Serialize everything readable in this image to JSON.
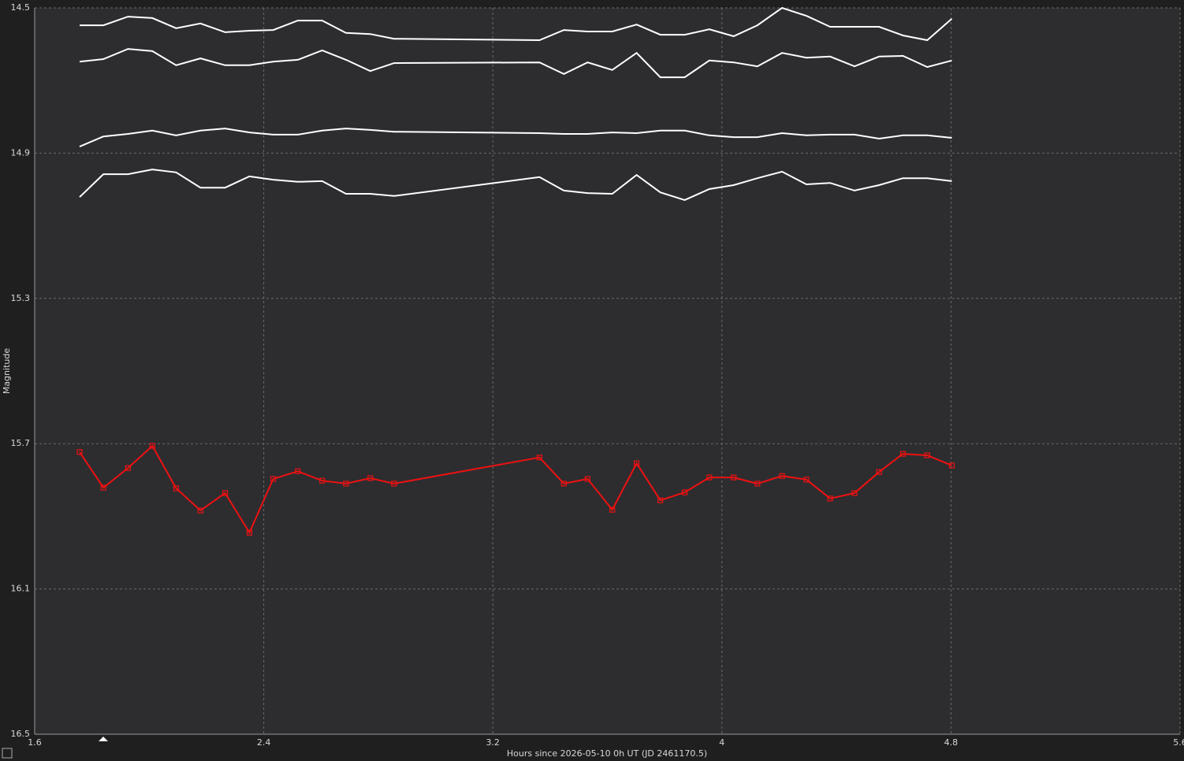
{
  "chart_data": {
    "type": "line",
    "x_label": "Hours since 2026-05-10 0h UT (JD 2461170.5)",
    "y_label": "Magnitude",
    "x": [
      1.757,
      1.84,
      1.926,
      2.011,
      2.094,
      2.179,
      2.265,
      2.35,
      2.433,
      2.519,
      2.604,
      2.687,
      2.772,
      2.855,
      3.363,
      3.448,
      3.531,
      3.617,
      3.702,
      3.785,
      3.87,
      3.956,
      4.041,
      4.124,
      4.21,
      4.295,
      4.378,
      4.463,
      4.549,
      4.632,
      4.717,
      4.803
    ],
    "series": [
      {
        "color": "#ffffff",
        "markers": false,
        "values": [
          14.548,
          14.548,
          14.524,
          14.528,
          14.556,
          14.543,
          14.567,
          14.563,
          14.561,
          14.535,
          14.535,
          14.569,
          14.572,
          14.585,
          14.589,
          14.561,
          14.565,
          14.565,
          14.546,
          14.574,
          14.574,
          14.559,
          14.578,
          14.548,
          14.5,
          14.522,
          14.552,
          14.552,
          14.552,
          14.576,
          14.589,
          14.53
        ]
      },
      {
        "color": "#ffffff",
        "markers": false,
        "values": [
          14.648,
          14.641,
          14.613,
          14.619,
          14.658,
          14.639,
          14.658,
          14.658,
          14.648,
          14.643,
          14.617,
          14.643,
          14.674,
          14.652,
          14.65,
          14.682,
          14.65,
          14.671,
          14.624,
          14.691,
          14.691,
          14.645,
          14.65,
          14.661,
          14.624,
          14.637,
          14.634,
          14.661,
          14.634,
          14.632,
          14.663,
          14.645
        ]
      },
      {
        "color": "#ffffff",
        "markers": false,
        "values": [
          14.882,
          14.854,
          14.847,
          14.838,
          14.851,
          14.838,
          14.832,
          14.843,
          14.849,
          14.849,
          14.838,
          14.832,
          14.836,
          14.841,
          14.845,
          14.847,
          14.847,
          14.843,
          14.845,
          14.838,
          14.838,
          14.851,
          14.856,
          14.856,
          14.845,
          14.851,
          14.849,
          14.849,
          14.86,
          14.851,
          14.851,
          14.858
        ]
      },
      {
        "color": "#ffffff",
        "markers": false,
        "values": [
          15.021,
          14.958,
          14.958,
          14.945,
          14.953,
          14.995,
          14.995,
          14.964,
          14.973,
          14.979,
          14.977,
          15.012,
          15.012,
          15.018,
          14.966,
          15.003,
          15.01,
          15.012,
          14.96,
          15.008,
          15.029,
          14.999,
          14.988,
          14.969,
          14.951,
          14.986,
          14.982,
          15.003,
          14.988,
          14.969,
          14.969,
          14.977
        ]
      },
      {
        "color": "#ee1111",
        "markers": true,
        "values": [
          15.723,
          15.821,
          15.767,
          15.706,
          15.823,
          15.884,
          15.836,
          15.945,
          15.797,
          15.776,
          15.802,
          15.81,
          15.795,
          15.81,
          15.738,
          15.81,
          15.797,
          15.882,
          15.754,
          15.856,
          15.834,
          15.793,
          15.793,
          15.81,
          15.789,
          15.799,
          15.851,
          15.836,
          15.778,
          15.728,
          15.732,
          15.76
        ]
      }
    ],
    "xlim": [
      1.6,
      5.6
    ],
    "xticks": [
      1.6,
      2.4,
      3.2,
      4,
      4.8,
      5.6
    ],
    "ylim": [
      14.5,
      16.5
    ],
    "yticks": [
      14.5,
      14.9,
      15.3,
      15.7,
      16.1,
      16.5
    ],
    "y_inverted": true,
    "grid": true
  }
}
